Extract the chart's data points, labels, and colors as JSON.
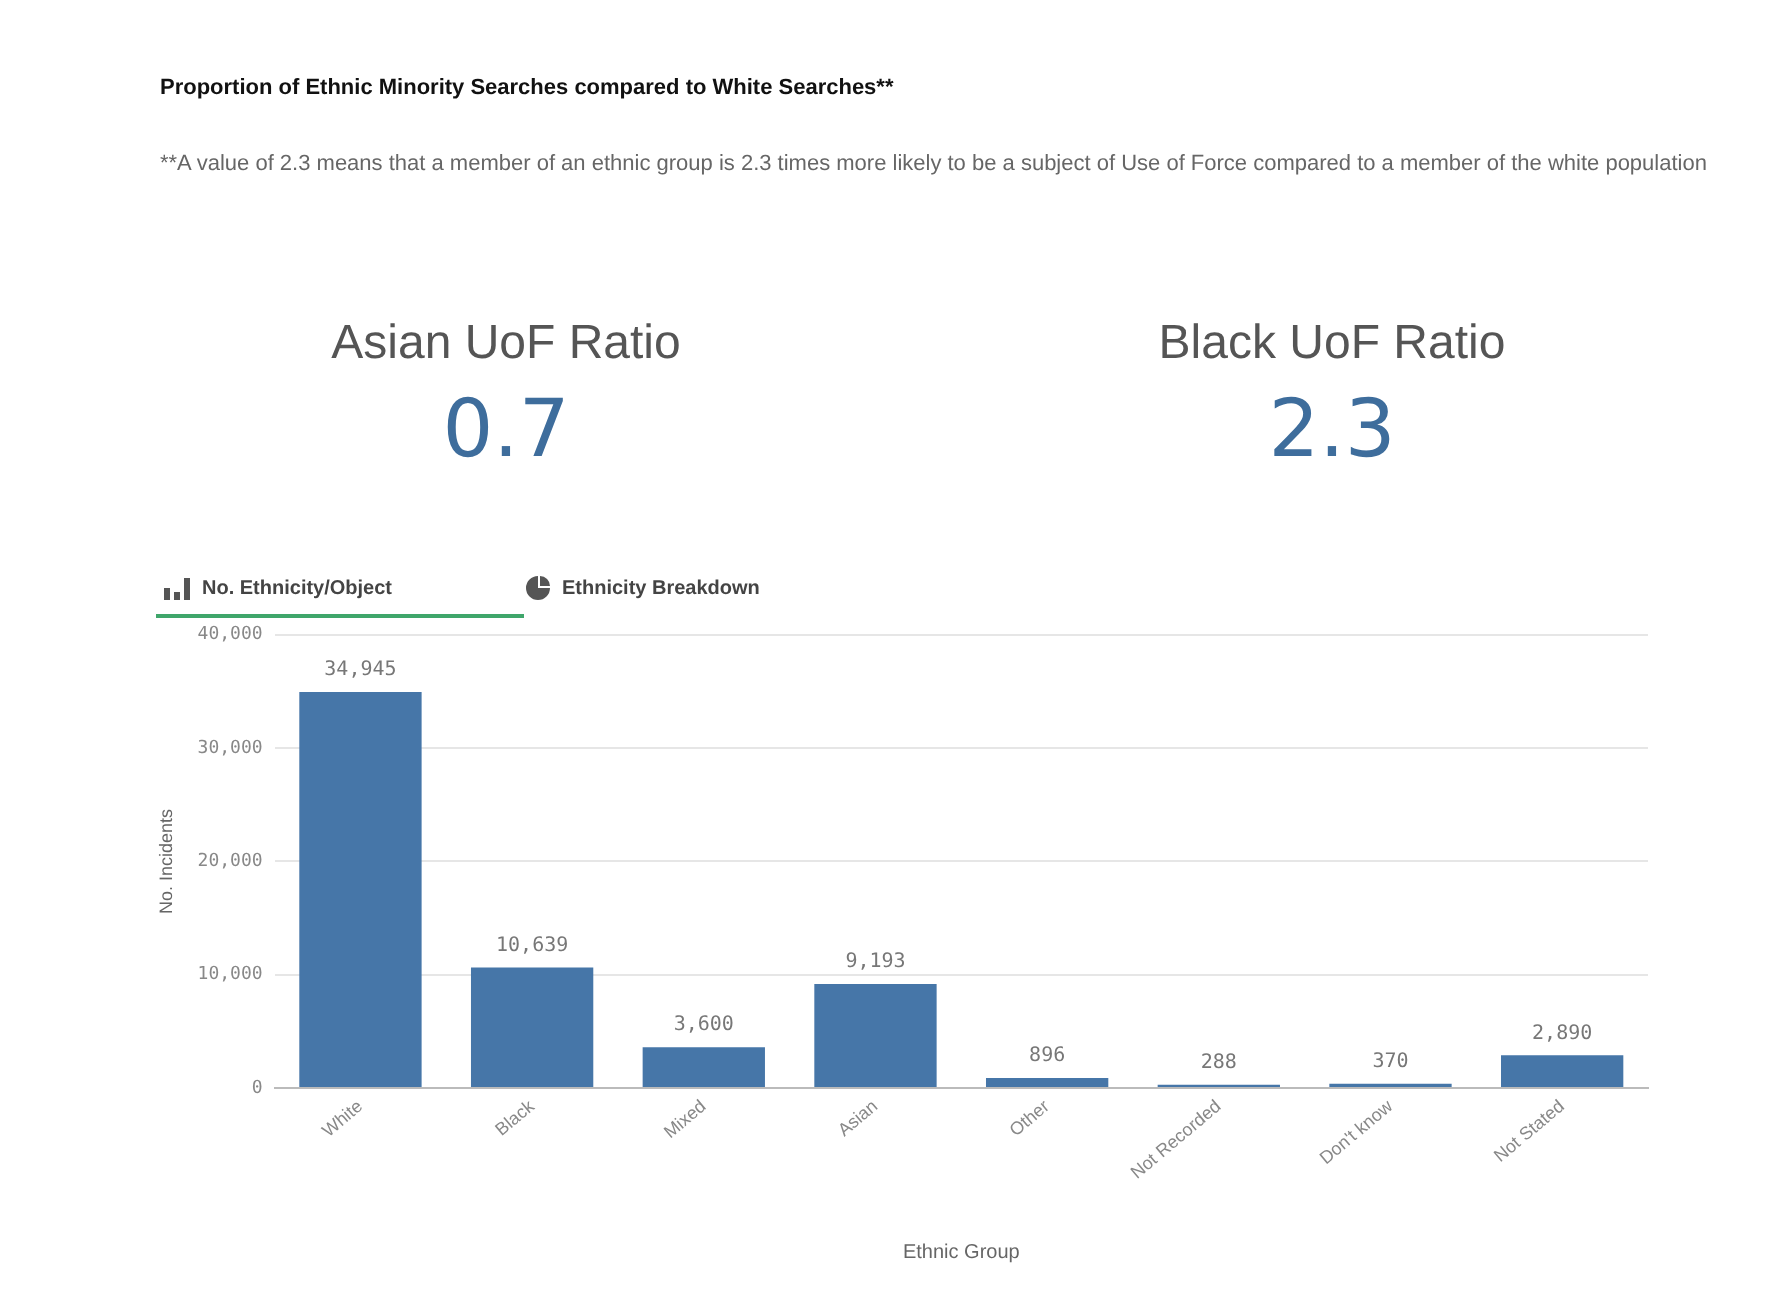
{
  "chart_data": {
    "type": "bar",
    "title": "Proportion of Ethnic Minority Searches compared to White Searches**",
    "subtitle": "**A value of 2.3 means that a member of an ethnic group is 2.3 times more likely to be a subject of Use of Force compared to a member of the white population",
    "annotations": [
      "Asian UoF Ratio",
      "0.7",
      "Black UoF Ratio",
      "2.3",
      "No. Ethnicity/Object",
      "Ethnicity Breakdown"
    ],
    "categories": [
      "White",
      "Black",
      "Mixed",
      "Asian",
      "Other",
      "Not Recorded",
      "Don't know",
      "Not Stated"
    ],
    "values": [
      34945,
      10639,
      3600,
      9193,
      896,
      288,
      370,
      2890
    ],
    "value_labels": [
      "34,945",
      "10,639",
      "3,600",
      "9,193",
      "896",
      "288",
      "370",
      "2,890"
    ],
    "color": "#4676a8",
    "xlabel": "Ethnic Group",
    "ylabel": "No. Incidents",
    "ylim": [
      0,
      40000
    ],
    "yticks": [
      {
        "value": 0,
        "label": "0"
      },
      {
        "value": 10000,
        "label": "10,000"
      },
      {
        "value": 20000,
        "label": "20,000"
      },
      {
        "value": 30000,
        "label": "30,000"
      },
      {
        "value": 40000,
        "label": "40,000"
      }
    ],
    "grid": "y",
    "legend": false
  }
}
